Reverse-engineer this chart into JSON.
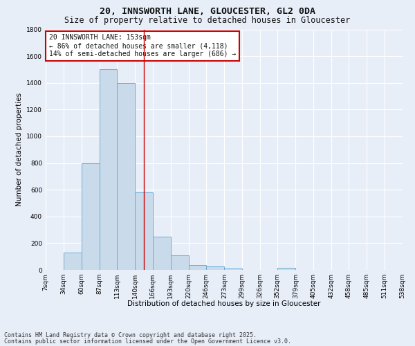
{
  "title_line1": "20, INNSWORTH LANE, GLOUCESTER, GL2 0DA",
  "title_line2": "Size of property relative to detached houses in Gloucester",
  "xlabel": "Distribution of detached houses by size in Gloucester",
  "ylabel": "Number of detached properties",
  "bin_edges": [
    7,
    34,
    60,
    87,
    113,
    140,
    166,
    193,
    220,
    246,
    273,
    299,
    326,
    352,
    379,
    405,
    432,
    458,
    485,
    511,
    538
  ],
  "bar_heights": [
    0,
    130,
    800,
    1500,
    1400,
    580,
    250,
    110,
    35,
    25,
    10,
    0,
    0,
    15,
    0,
    0,
    0,
    0,
    0,
    0
  ],
  "bar_color": "#c9daea",
  "bar_edge_color": "#6aaed6",
  "bg_color": "#e8eef8",
  "grid_color": "#ffffff",
  "vline_x": 153,
  "vline_color": "#cc0000",
  "annotation_text": "20 INNSWORTH LANE: 153sqm\n← 86% of detached houses are smaller (4,118)\n14% of semi-detached houses are larger (686) →",
  "annotation_box_color": "#cc0000",
  "annotation_bg": "#ffffff",
  "ylim": [
    0,
    1800
  ],
  "yticks": [
    0,
    200,
    400,
    600,
    800,
    1000,
    1200,
    1400,
    1600,
    1800
  ],
  "footnote_line1": "Contains HM Land Registry data © Crown copyright and database right 2025.",
  "footnote_line2": "Contains public sector information licensed under the Open Government Licence v3.0.",
  "title_fontsize": 9.5,
  "subtitle_fontsize": 8.5,
  "axis_label_fontsize": 7.5,
  "tick_fontsize": 6.5,
  "annotation_fontsize": 7,
  "footnote_fontsize": 6
}
